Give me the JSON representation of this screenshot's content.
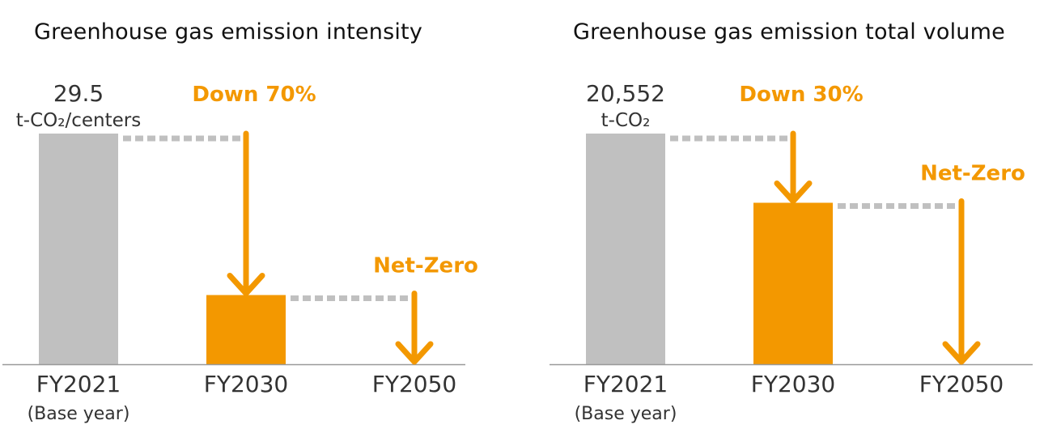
{
  "colors": {
    "base_bar": "#c0c0c0",
    "accent": "#f39800",
    "dotted": "#c0c0c0",
    "axis": "#999999",
    "text": "#333333"
  },
  "chart_data": [
    {
      "type": "bar",
      "title": "Greenhouse gas emission intensity",
      "categories": [
        "FY2021",
        "FY2030",
        "FY2050"
      ],
      "category_notes": [
        "(Base year)",
        "",
        ""
      ],
      "values": [
        29.5,
        8.85,
        0
      ],
      "ylim": [
        0,
        29.5
      ],
      "value_label": "29.5",
      "unit_label": "t-CO₂/centers",
      "annotations": {
        "reduction": "Down 70%",
        "target": "Net-Zero"
      },
      "grid": false
    },
    {
      "type": "bar",
      "title": "Greenhouse gas emission total volume",
      "categories": [
        "FY2021",
        "FY2030",
        "FY2050"
      ],
      "category_notes": [
        "(Base year)",
        "",
        ""
      ],
      "values": [
        20552,
        14386,
        0
      ],
      "ylim": [
        0,
        20552
      ],
      "value_label": "20,552",
      "unit_label": "t-CO₂",
      "annotations": {
        "reduction": "Down 30%",
        "target": "Net-Zero"
      },
      "grid": false
    }
  ]
}
